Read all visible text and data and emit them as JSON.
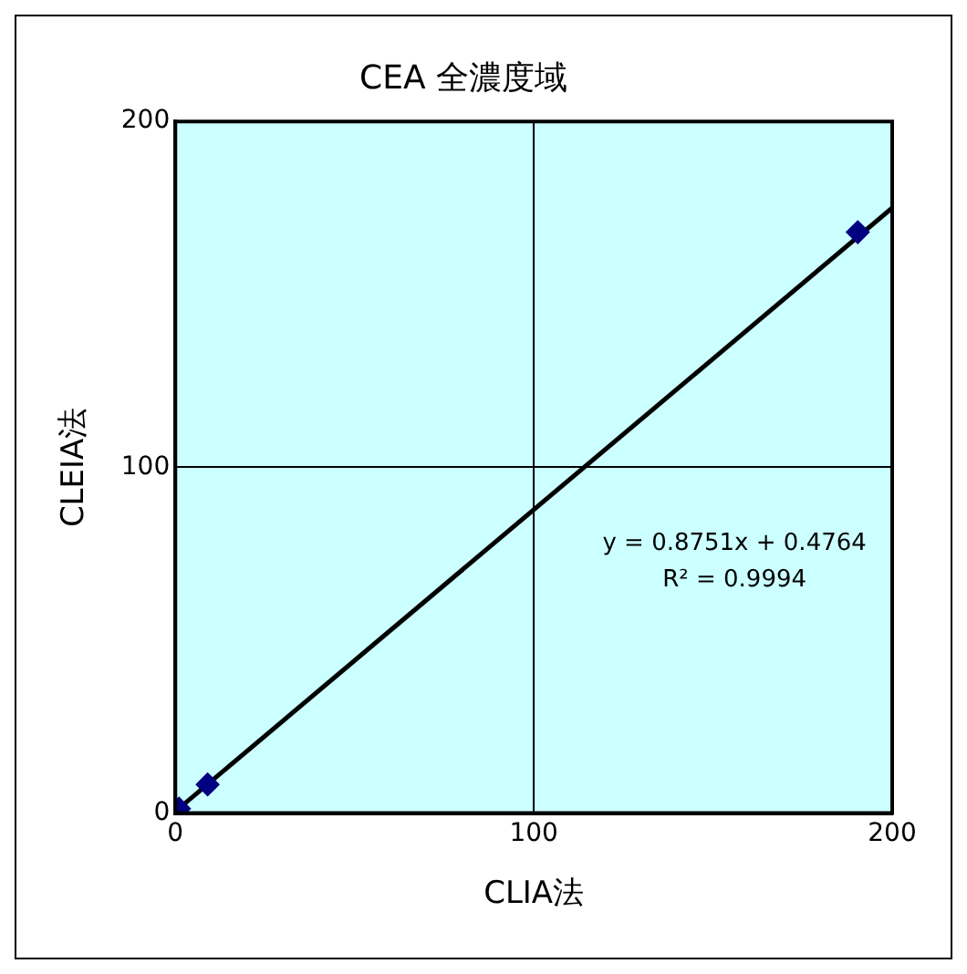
{
  "chart_data": {
    "type": "scatter",
    "title": "CEA 全濃度域",
    "xlabel": "CLIA法",
    "ylabel": "CLEIA法",
    "xlim": [
      0,
      200
    ],
    "xticks": [
      0,
      100,
      200
    ],
    "ylim": [
      0,
      200
    ],
    "yticks": [
      0,
      100,
      200
    ],
    "grid": true,
    "legend": false,
    "series": [
      {
        "marker": "diamond",
        "color": "#000080",
        "x": [
          1,
          9,
          190.4
        ],
        "values": [
          1.3,
          8.3,
          168
        ]
      },
      {
        "type": "line",
        "marker": "none",
        "color": "#000000",
        "x": [
          0,
          200
        ],
        "values": [
          0.5,
          175
        ]
      }
    ],
    "annotations": [
      "y = 0.8751x + 0.4764",
      "R² = 0.9994"
    ]
  }
}
